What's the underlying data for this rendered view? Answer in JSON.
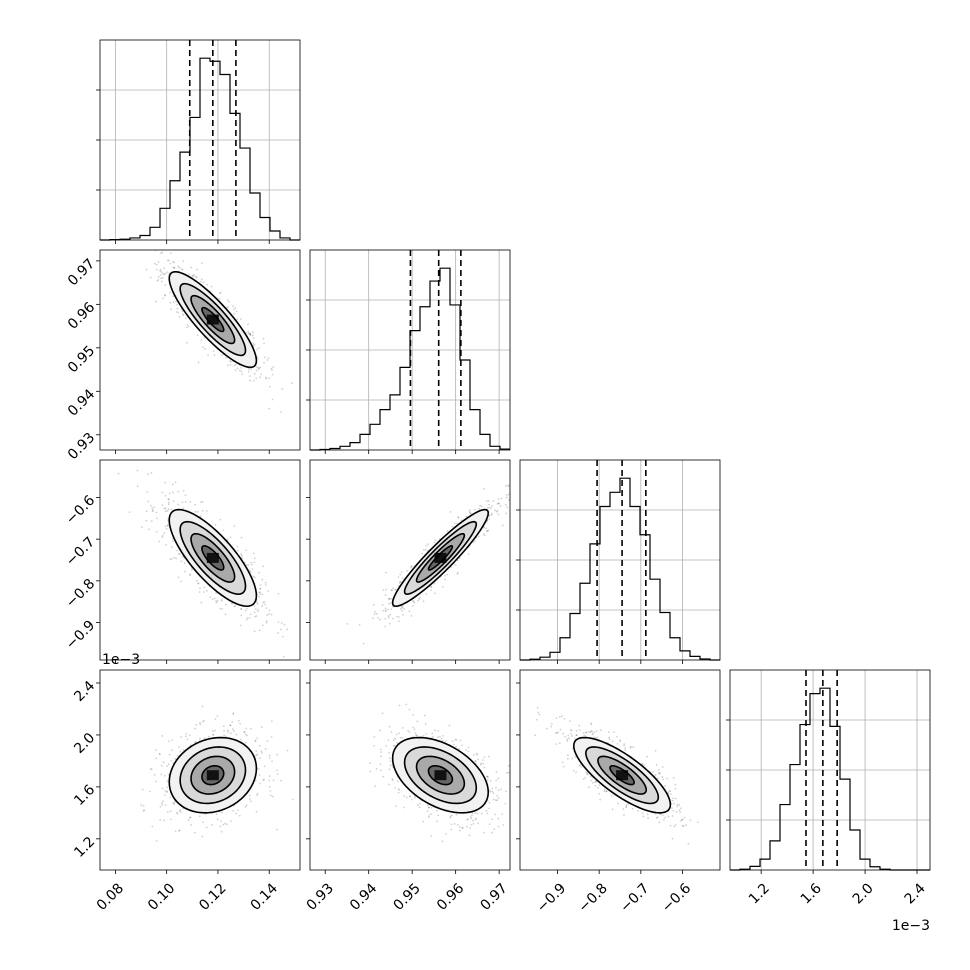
{
  "chart_data": {
    "type": "corner",
    "title": "",
    "parameters": [
      {
        "index": 0,
        "range": [
          0.074,
          0.152
        ],
        "ticks": [
          0.08,
          0.1,
          0.12,
          0.14
        ],
        "tick_labels": [
          "0.08",
          "0.10",
          "0.12",
          "0.14"
        ],
        "offset_text": "",
        "quantiles": [
          0.109,
          0.118,
          0.127
        ]
      },
      {
        "index": 1,
        "range": [
          0.9265,
          0.9725
        ],
        "ticks": [
          0.93,
          0.94,
          0.95,
          0.96,
          0.97
        ],
        "tick_labels": [
          "0.93",
          "0.94",
          "0.95",
          "0.96",
          "0.97"
        ],
        "offset_text": "",
        "quantiles": [
          0.9496,
          0.9561,
          0.9612
        ]
      },
      {
        "index": 2,
        "range": [
          -0.99,
          -0.51
        ],
        "ticks": [
          -0.9,
          -0.8,
          -0.7,
          -0.6
        ],
        "tick_labels": [
          "−0.9",
          "−0.8",
          "−0.7",
          "−0.6"
        ],
        "offset_text": "",
        "quantiles": [
          -0.805,
          -0.745,
          -0.688
        ]
      },
      {
        "index": 3,
        "range": [
          0.96,
          2.5
        ],
        "ticks": [
          1.2,
          1.6,
          2.0,
          2.4
        ],
        "tick_labels": [
          "1.2",
          "1.6",
          "2.0",
          "2.4"
        ],
        "offset_text": "1e−3",
        "quantiles": [
          1.545,
          1.675,
          1.785
        ]
      }
    ],
    "histograms": [
      {
        "param": 0,
        "edges": [
          0.074,
          0.0779,
          0.0818,
          0.0857,
          0.0896,
          0.0935,
          0.0974,
          0.1013,
          0.1052,
          0.1091,
          0.113,
          0.1169,
          0.1208,
          0.1247,
          0.1286,
          0.1325,
          0.1364,
          0.1403,
          0.1442,
          0.1481,
          0.152
        ],
        "counts": [
          0,
          2,
          4,
          10,
          22,
          62,
          155,
          290,
          430,
          600,
          890,
          875,
          810,
          620,
          450,
          230,
          110,
          44,
          10,
          0
        ]
      },
      {
        "param": 1,
        "edges": [
          0.9265,
          0.9288,
          0.9311,
          0.9334,
          0.9357,
          0.938,
          0.9403,
          0.9426,
          0.9449,
          0.9472,
          0.9495,
          0.9518,
          0.9541,
          0.9564,
          0.9587,
          0.961,
          0.9633,
          0.9656,
          0.9679,
          0.9702,
          0.9725
        ],
        "counts": [
          0,
          3,
          8,
          20,
          40,
          85,
          140,
          220,
          300,
          450,
          650,
          780,
          920,
          990,
          790,
          490,
          220,
          85,
          20,
          5
        ]
      },
      {
        "param": 2,
        "edges": [
          -0.99,
          -0.966,
          -0.942,
          -0.918,
          -0.894,
          -0.87,
          -0.846,
          -0.822,
          -0.798,
          -0.774,
          -0.75,
          -0.726,
          -0.702,
          -0.678,
          -0.654,
          -0.63,
          -0.606,
          -0.582,
          -0.558,
          -0.534,
          -0.51
        ],
        "counts": [
          0,
          4,
          14,
          38,
          110,
          230,
          380,
          575,
          760,
          830,
          900,
          760,
          620,
          400,
          235,
          110,
          45,
          18,
          5,
          0
        ]
      },
      {
        "param": 3,
        "edges": [
          0.96,
          1.037,
          1.114,
          1.191,
          1.268,
          1.345,
          1.422,
          1.499,
          1.576,
          1.653,
          1.73,
          1.807,
          1.884,
          1.961,
          2.038,
          2.115,
          2.192,
          2.269,
          2.346,
          2.423,
          2.5
        ],
        "counts": [
          0,
          4,
          20,
          60,
          160,
          360,
          580,
          800,
          970,
          1000,
          790,
          500,
          220,
          60,
          18,
          4,
          0,
          0,
          0,
          0
        ]
      }
    ],
    "pairs": [
      {
        "x_param": 0,
        "y_param": 1,
        "center": [
          0.118,
          0.9565
        ],
        "sigma": [
          0.0085,
          0.0055
        ],
        "rho": -0.86
      },
      {
        "x_param": 0,
        "y_param": 2,
        "center": [
          0.118,
          -0.745
        ],
        "sigma": [
          0.0085,
          0.058
        ],
        "rho": -0.78
      },
      {
        "x_param": 1,
        "y_param": 2,
        "center": [
          0.9565,
          -0.745
        ],
        "sigma": [
          0.0055,
          0.058
        ],
        "rho": 0.93
      },
      {
        "x_param": 0,
        "y_param": 3,
        "center": [
          0.118,
          1.69
        ],
        "sigma": [
          0.0085,
          0.145
        ],
        "rho": 0.18
      },
      {
        "x_param": 1,
        "y_param": 3,
        "center": [
          0.9565,
          1.69
        ],
        "sigma": [
          0.0055,
          0.145
        ],
        "rho": -0.45
      },
      {
        "x_param": 2,
        "y_param": 3,
        "center": [
          -0.745,
          1.69
        ],
        "sigma": [
          0.058,
          0.145
        ],
        "rho": -0.78
      }
    ],
    "contour_levels_sigma": [
      0.5,
      1.0,
      1.5,
      2.0
    ],
    "grid": true,
    "legend": "none"
  }
}
